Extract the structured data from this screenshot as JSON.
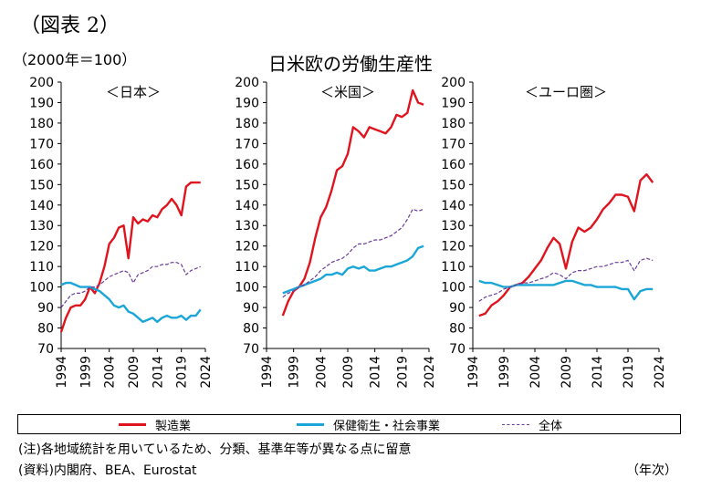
{
  "figure_label": "（図表 2）",
  "unit_label": "（2000年＝100）",
  "title": "日米欧の労働生産性",
  "legend": [
    {
      "name": "製造業",
      "color": "#e0141e",
      "style": "solid"
    },
    {
      "name": "保健衛生・社会事業",
      "color": "#1aa6d6",
      "style": "solid"
    },
    {
      "name": "全体",
      "color": "#6a3d9a",
      "style": "dashed"
    }
  ],
  "note": "(注)各地域統計を用いているため、分類、基準年等が異なる点に留意",
  "source": "(資料)内閣府、BEA、Eurostat",
  "x_unit": "（年次）",
  "chart_data": [
    {
      "type": "line",
      "title": "＜日本＞",
      "xlim": [
        1994,
        2024
      ],
      "ylim": [
        70,
        200
      ],
      "xticks": [
        1994,
        1999,
        2004,
        2009,
        2014,
        2019,
        2024
      ],
      "yticks": [
        70,
        80,
        90,
        100,
        110,
        120,
        130,
        140,
        150,
        160,
        170,
        180,
        190,
        200
      ],
      "series": [
        {
          "name": "製造業",
          "x": [
            1994,
            1995,
            1996,
            1997,
            1998,
            1999,
            2000,
            2001,
            2002,
            2003,
            2004,
            2005,
            2006,
            2007,
            2008,
            2009,
            2010,
            2011,
            2012,
            2013,
            2014,
            2015,
            2016,
            2017,
            2018,
            2019,
            2020,
            2021,
            2022,
            2023
          ],
          "y": [
            78,
            85,
            90,
            91,
            91,
            94,
            100,
            97,
            102,
            110,
            121,
            124,
            129,
            130,
            114,
            134,
            131,
            133,
            132,
            135,
            134,
            138,
            140,
            143,
            140,
            135,
            149,
            151,
            151,
            151
          ]
        },
        {
          "name": "保健衛生・社会事業",
          "x": [
            1994,
            1995,
            1996,
            1997,
            1998,
            1999,
            2000,
            2001,
            2002,
            2003,
            2004,
            2005,
            2006,
            2007,
            2008,
            2009,
            2010,
            2011,
            2012,
            2013,
            2014,
            2015,
            2016,
            2017,
            2018,
            2019,
            2020,
            2021,
            2022,
            2023
          ],
          "y": [
            101,
            102,
            102,
            101,
            100,
            100,
            100,
            99,
            98,
            96,
            94,
            91,
            90,
            91,
            88,
            87,
            85,
            83,
            84,
            85,
            83,
            85,
            86,
            85,
            85,
            86,
            84,
            86,
            86,
            89
          ]
        },
        {
          "name": "全体",
          "x": [
            1994,
            1995,
            1996,
            1997,
            1998,
            1999,
            2000,
            2001,
            2002,
            2003,
            2004,
            2005,
            2006,
            2007,
            2008,
            2009,
            2010,
            2011,
            2012,
            2013,
            2014,
            2015,
            2016,
            2017,
            2018,
            2019,
            2020,
            2021,
            2022,
            2023
          ],
          "y": [
            90,
            93,
            96,
            97,
            97,
            98,
            100,
            100,
            101,
            103,
            105,
            106,
            107,
            108,
            107,
            102,
            106,
            107,
            108,
            110,
            110,
            111,
            111,
            112,
            112,
            111,
            106,
            108,
            109,
            110
          ]
        }
      ]
    },
    {
      "type": "line",
      "title": "＜米国＞",
      "xlim": [
        1994,
        2024
      ],
      "ylim": [
        70,
        200
      ],
      "xticks": [
        1994,
        1999,
        2004,
        2009,
        2014,
        2019,
        2024
      ],
      "yticks": [
        70,
        80,
        90,
        100,
        110,
        120,
        130,
        140,
        150,
        160,
        170,
        180,
        190,
        200
      ],
      "series": [
        {
          "name": "製造業",
          "x": [
            1997,
            1998,
            1999,
            2000,
            2001,
            2002,
            2003,
            2004,
            2005,
            2006,
            2007,
            2008,
            2009,
            2010,
            2011,
            2012,
            2013,
            2014,
            2015,
            2016,
            2017,
            2018,
            2019,
            2020,
            2021,
            2022,
            2023
          ],
          "y": [
            86,
            93,
            98,
            100,
            104,
            112,
            124,
            134,
            139,
            147,
            157,
            159,
            165,
            178,
            176,
            173,
            178,
            177,
            176,
            175,
            178,
            184,
            183,
            185,
            196,
            190,
            189
          ]
        },
        {
          "name": "保健衛生・社会事業",
          "x": [
            1997,
            1998,
            1999,
            2000,
            2001,
            2002,
            2003,
            2004,
            2005,
            2006,
            2007,
            2008,
            2009,
            2010,
            2011,
            2012,
            2013,
            2014,
            2015,
            2016,
            2017,
            2018,
            2019,
            2020,
            2021,
            2022,
            2023
          ],
          "y": [
            97,
            98,
            99,
            100,
            101,
            102,
            103,
            104,
            106,
            106,
            107,
            106,
            109,
            110,
            109,
            110,
            108,
            108,
            109,
            110,
            110,
            111,
            112,
            113,
            115,
            119,
            120
          ]
        },
        {
          "name": "全体",
          "x": [
            1997,
            1998,
            1999,
            2000,
            2001,
            2002,
            2003,
            2004,
            2005,
            2006,
            2007,
            2008,
            2009,
            2010,
            2011,
            2012,
            2013,
            2014,
            2015,
            2016,
            2017,
            2018,
            2019,
            2020,
            2021,
            2022,
            2023
          ],
          "y": [
            95,
            97,
            98,
            100,
            101,
            103,
            105,
            108,
            110,
            112,
            113,
            114,
            116,
            119,
            121,
            121,
            122,
            123,
            123,
            124,
            125,
            127,
            129,
            133,
            138,
            137,
            138
          ]
        }
      ]
    },
    {
      "type": "line",
      "title": "＜ユーロ圏＞",
      "xlim": [
        1994,
        2024
      ],
      "ylim": [
        70,
        200
      ],
      "xticks": [
        1994,
        1999,
        2004,
        2009,
        2014,
        2019,
        2024
      ],
      "yticks": [
        70,
        80,
        90,
        100,
        110,
        120,
        130,
        140,
        150,
        160,
        170,
        180,
        190,
        200
      ],
      "series": [
        {
          "name": "製造業",
          "x": [
            1995,
            1996,
            1997,
            1998,
            1999,
            2000,
            2001,
            2002,
            2003,
            2004,
            2005,
            2006,
            2007,
            2008,
            2009,
            2010,
            2011,
            2012,
            2013,
            2014,
            2015,
            2016,
            2017,
            2018,
            2019,
            2020,
            2021,
            2022,
            2023
          ],
          "y": [
            86,
            87,
            91,
            93,
            96,
            100,
            101,
            102,
            105,
            109,
            113,
            119,
            124,
            121,
            109,
            122,
            129,
            127,
            129,
            133,
            138,
            141,
            145,
            145,
            144,
            137,
            152,
            155,
            151
          ]
        },
        {
          "name": "保健衛生・社会事業",
          "x": [
            1995,
            1996,
            1997,
            1998,
            1999,
            2000,
            2001,
            2002,
            2003,
            2004,
            2005,
            2006,
            2007,
            2008,
            2009,
            2010,
            2011,
            2012,
            2013,
            2014,
            2015,
            2016,
            2017,
            2018,
            2019,
            2020,
            2021,
            2022,
            2023
          ],
          "y": [
            103,
            102,
            102,
            101,
            100,
            100,
            101,
            101,
            101,
            101,
            101,
            101,
            101,
            102,
            103,
            103,
            102,
            101,
            101,
            100,
            100,
            100,
            100,
            99,
            99,
            94,
            98,
            99,
            99
          ]
        },
        {
          "name": "全体",
          "x": [
            1995,
            1996,
            1997,
            1998,
            1999,
            2000,
            2001,
            2002,
            2003,
            2004,
            2005,
            2006,
            2007,
            2008,
            2009,
            2010,
            2011,
            2012,
            2013,
            2014,
            2015,
            2016,
            2017,
            2018,
            2019,
            2020,
            2021,
            2022,
            2023
          ],
          "y": [
            93,
            95,
            96,
            97,
            99,
            100,
            101,
            102,
            102,
            103,
            104,
            105,
            107,
            106,
            104,
            107,
            108,
            108,
            109,
            110,
            110,
            111,
            112,
            112,
            113,
            108,
            113,
            114,
            113
          ]
        }
      ]
    }
  ]
}
